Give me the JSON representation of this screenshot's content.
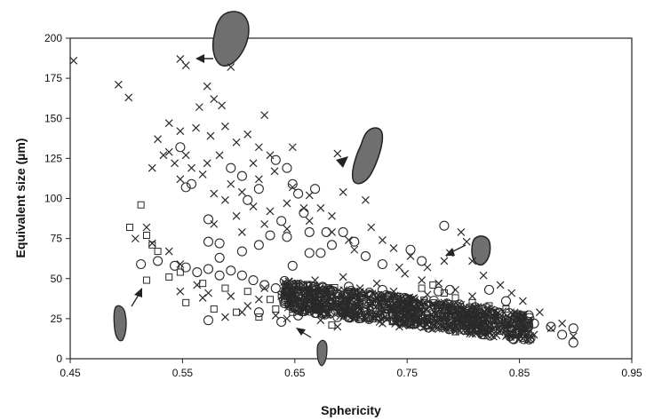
{
  "chart_data": {
    "type": "scatter",
    "xlabel": "Sphericity",
    "ylabel": "Equivalent size (µm)",
    "xlim": [
      0.45,
      0.95
    ],
    "ylim": [
      0,
      200
    ],
    "x_ticks": [
      0.45,
      0.55,
      0.65,
      0.75,
      0.85,
      0.95
    ],
    "x_tick_labels": [
      "0.45",
      "0.55",
      "0.65",
      "0.75",
      "0.85",
      "0.95"
    ],
    "y_ticks": [
      0,
      25,
      50,
      75,
      100,
      125,
      150,
      175,
      200
    ],
    "y_tick_labels": [
      "0",
      "25",
      "50",
      "75",
      "100",
      "125",
      "150",
      "175",
      "200"
    ],
    "grid": false,
    "legend": "none",
    "marker_color": "#2a2a2a",
    "series": [
      {
        "marker": "cross",
        "points": [
          [
            0.453,
            186
          ],
          [
            0.493,
            171
          ],
          [
            0.502,
            163
          ],
          [
            0.548,
            187
          ],
          [
            0.553,
            183
          ],
          [
            0.565,
            157
          ],
          [
            0.572,
            170
          ],
          [
            0.578,
            162
          ],
          [
            0.585,
            158
          ],
          [
            0.593,
            182
          ],
          [
            0.538,
            147
          ],
          [
            0.528,
            137
          ],
          [
            0.548,
            142
          ],
          [
            0.562,
            144
          ],
          [
            0.575,
            139
          ],
          [
            0.588,
            145
          ],
          [
            0.598,
            135
          ],
          [
            0.608,
            140
          ],
          [
            0.618,
            132
          ],
          [
            0.628,
            127
          ],
          [
            0.613,
            122
          ],
          [
            0.583,
            127
          ],
          [
            0.572,
            122
          ],
          [
            0.553,
            127
          ],
          [
            0.543,
            122
          ],
          [
            0.533,
            127
          ],
          [
            0.523,
            119
          ],
          [
            0.548,
            112
          ],
          [
            0.568,
            115
          ],
          [
            0.593,
            109
          ],
          [
            0.603,
            104
          ],
          [
            0.618,
            112
          ],
          [
            0.632,
            117
          ],
          [
            0.648,
            107
          ],
          [
            0.663,
            102
          ],
          [
            0.658,
            94
          ],
          [
            0.643,
            97
          ],
          [
            0.628,
            92
          ],
          [
            0.613,
            95
          ],
          [
            0.598,
            89
          ],
          [
            0.588,
            99
          ],
          [
            0.578,
            103
          ],
          [
            0.578,
            84
          ],
          [
            0.603,
            79
          ],
          [
            0.623,
            84
          ],
          [
            0.643,
            81
          ],
          [
            0.663,
            86
          ],
          [
            0.683,
            79
          ],
          [
            0.698,
            74
          ],
          [
            0.703,
            68
          ],
          [
            0.683,
            89
          ],
          [
            0.673,
            94
          ],
          [
            0.693,
            104
          ],
          [
            0.713,
            99
          ],
          [
            0.688,
            128
          ],
          [
            0.648,
            132
          ],
          [
            0.623,
            152
          ],
          [
            0.538,
            129
          ],
          [
            0.558,
            119
          ],
          [
            0.718,
            82
          ],
          [
            0.728,
            74
          ],
          [
            0.738,
            69
          ],
          [
            0.753,
            64
          ],
          [
            0.743,
            57
          ],
          [
            0.768,
            57
          ],
          [
            0.783,
            61
          ],
          [
            0.808,
            61
          ],
          [
            0.788,
            66
          ],
          [
            0.798,
            79
          ],
          [
            0.803,
            73
          ],
          [
            0.818,
            52
          ],
          [
            0.833,
            46
          ],
          [
            0.843,
            41
          ],
          [
            0.853,
            36
          ],
          [
            0.868,
            29
          ],
          [
            0.878,
            19
          ],
          [
            0.888,
            22
          ],
          [
            0.898,
            14
          ],
          [
            0.858,
            24
          ],
          [
            0.508,
            75
          ],
          [
            0.518,
            82
          ],
          [
            0.523,
            72
          ],
          [
            0.538,
            67
          ],
          [
            0.548,
            59
          ],
          [
            0.563,
            46
          ],
          [
            0.573,
            41
          ],
          [
            0.593,
            39
          ],
          [
            0.608,
            33
          ],
          [
            0.618,
            37
          ],
          [
            0.633,
            27
          ],
          [
            0.643,
            25
          ],
          [
            0.653,
            29
          ],
          [
            0.668,
            36
          ],
          [
            0.683,
            32
          ],
          [
            0.698,
            28
          ],
          [
            0.713,
            25
          ],
          [
            0.728,
            22
          ],
          [
            0.743,
            20
          ],
          [
            0.758,
            23
          ],
          [
            0.773,
            21
          ],
          [
            0.788,
            19
          ],
          [
            0.803,
            17
          ],
          [
            0.818,
            15
          ],
          [
            0.833,
            18
          ],
          [
            0.548,
            42
          ],
          [
            0.568,
            38
          ],
          [
            0.588,
            26
          ],
          [
            0.603,
            29
          ],
          [
            0.623,
            44
          ],
          [
            0.638,
            39
          ],
          [
            0.653,
            45
          ],
          [
            0.668,
            49
          ],
          [
            0.693,
            51
          ],
          [
            0.708,
            44
          ],
          [
            0.723,
            47
          ],
          [
            0.738,
            42
          ],
          [
            0.753,
            37
          ],
          [
            0.768,
            40
          ],
          [
            0.783,
            35
          ],
          [
            0.798,
            31
          ],
          [
            0.813,
            27
          ],
          [
            0.828,
            24
          ],
          [
            0.843,
            21
          ],
          [
            0.703,
            38
          ],
          [
            0.718,
            35
          ],
          [
            0.733,
            33
          ],
          [
            0.748,
            30
          ],
          [
            0.763,
            28
          ],
          [
            0.778,
            26
          ],
          [
            0.793,
            24
          ],
          [
            0.808,
            22
          ],
          [
            0.823,
            20
          ],
          [
            0.838,
            19
          ],
          [
            0.853,
            17
          ],
          [
            0.863,
            15
          ],
          [
            0.688,
            20
          ],
          [
            0.673,
            24
          ],
          [
            0.658,
            31
          ],
          [
            0.663,
            40
          ],
          [
            0.678,
            42
          ],
          [
            0.748,
            53
          ],
          [
            0.763,
            49
          ],
          [
            0.778,
            47
          ],
          [
            0.793,
            43
          ],
          [
            0.808,
            39
          ]
        ]
      },
      {
        "marker": "circle",
        "points": [
          [
            0.548,
            132
          ],
          [
            0.553,
            107
          ],
          [
            0.558,
            109
          ],
          [
            0.573,
            87
          ],
          [
            0.593,
            119
          ],
          [
            0.603,
            114
          ],
          [
            0.608,
            99
          ],
          [
            0.618,
            106
          ],
          [
            0.633,
            124
          ],
          [
            0.643,
            119
          ],
          [
            0.648,
            109
          ],
          [
            0.653,
            103
          ],
          [
            0.668,
            106
          ],
          [
            0.658,
            91
          ],
          [
            0.638,
            86
          ],
          [
            0.628,
            77
          ],
          [
            0.618,
            71
          ],
          [
            0.603,
            67
          ],
          [
            0.583,
            72
          ],
          [
            0.573,
            73
          ],
          [
            0.583,
            63
          ],
          [
            0.643,
            76
          ],
          [
            0.663,
            79
          ],
          [
            0.678,
            79
          ],
          [
            0.693,
            79
          ],
          [
            0.703,
            73
          ],
          [
            0.683,
            71
          ],
          [
            0.663,
            66
          ],
          [
            0.648,
            58
          ],
          [
            0.673,
            66
          ],
          [
            0.713,
            64
          ],
          [
            0.728,
            59
          ],
          [
            0.753,
            68
          ],
          [
            0.763,
            61
          ],
          [
            0.783,
            83
          ],
          [
            0.788,
            43
          ],
          [
            0.778,
            42
          ],
          [
            0.823,
            43
          ],
          [
            0.838,
            36
          ],
          [
            0.848,
            26
          ],
          [
            0.863,
            22
          ],
          [
            0.878,
            20
          ],
          [
            0.888,
            15
          ],
          [
            0.898,
            19
          ],
          [
            0.898,
            10
          ],
          [
            0.513,
            59
          ],
          [
            0.528,
            61
          ],
          [
            0.543,
            58
          ],
          [
            0.553,
            57
          ],
          [
            0.563,
            54
          ],
          [
            0.573,
            56
          ],
          [
            0.583,
            52
          ],
          [
            0.593,
            55
          ],
          [
            0.603,
            52
          ],
          [
            0.613,
            49
          ],
          [
            0.623,
            46
          ],
          [
            0.633,
            44
          ],
          [
            0.643,
            42
          ],
          [
            0.653,
            40
          ],
          [
            0.663,
            38
          ],
          [
            0.673,
            36
          ],
          [
            0.683,
            34
          ],
          [
            0.693,
            33
          ],
          [
            0.703,
            31
          ],
          [
            0.713,
            30
          ],
          [
            0.723,
            29
          ],
          [
            0.733,
            28
          ],
          [
            0.743,
            27
          ],
          [
            0.753,
            26
          ],
          [
            0.763,
            25
          ],
          [
            0.773,
            24
          ],
          [
            0.783,
            23
          ],
          [
            0.793,
            22
          ],
          [
            0.803,
            21
          ],
          [
            0.813,
            20
          ],
          [
            0.823,
            19
          ],
          [
            0.833,
            18
          ],
          [
            0.843,
            17
          ],
          [
            0.573,
            24
          ],
          [
            0.638,
            23
          ],
          [
            0.618,
            29
          ],
          [
            0.653,
            27
          ],
          [
            0.688,
            26
          ],
          [
            0.718,
            39
          ],
          [
            0.738,
            36
          ],
          [
            0.758,
            34
          ],
          [
            0.778,
            31
          ],
          [
            0.798,
            29
          ],
          [
            0.818,
            26
          ],
          [
            0.838,
            24
          ],
          [
            0.698,
            45
          ],
          [
            0.708,
            41
          ],
          [
            0.728,
            43
          ],
          [
            0.748,
            38
          ],
          [
            0.768,
            33
          ],
          [
            0.788,
            30
          ],
          [
            0.808,
            28
          ],
          [
            0.828,
            25
          ],
          [
            0.848,
            22
          ],
          [
            0.858,
            20
          ]
        ]
      },
      {
        "marker": "square",
        "points": [
          [
            0.513,
            96
          ],
          [
            0.503,
            82
          ],
          [
            0.518,
            77
          ],
          [
            0.523,
            71
          ],
          [
            0.528,
            67
          ],
          [
            0.518,
            49
          ],
          [
            0.538,
            51
          ],
          [
            0.548,
            54
          ],
          [
            0.568,
            47
          ],
          [
            0.588,
            44
          ],
          [
            0.608,
            42
          ],
          [
            0.628,
            37
          ],
          [
            0.638,
            40
          ],
          [
            0.653,
            43
          ],
          [
            0.668,
            40
          ],
          [
            0.683,
            36
          ],
          [
            0.693,
            34
          ],
          [
            0.708,
            38
          ],
          [
            0.723,
            35
          ],
          [
            0.738,
            31
          ],
          [
            0.753,
            29
          ],
          [
            0.768,
            27
          ],
          [
            0.783,
            26
          ],
          [
            0.798,
            24
          ],
          [
            0.813,
            22
          ],
          [
            0.828,
            20
          ],
          [
            0.843,
            19
          ],
          [
            0.553,
            35
          ],
          [
            0.578,
            31
          ],
          [
            0.598,
            29
          ],
          [
            0.618,
            26
          ],
          [
            0.633,
            31
          ],
          [
            0.648,
            29
          ],
          [
            0.663,
            33
          ],
          [
            0.678,
            31
          ],
          [
            0.693,
            29
          ],
          [
            0.708,
            27
          ],
          [
            0.723,
            26
          ],
          [
            0.738,
            24
          ],
          [
            0.753,
            23
          ],
          [
            0.768,
            21
          ],
          [
            0.783,
            20
          ],
          [
            0.653,
            36
          ],
          [
            0.683,
            21
          ],
          [
            0.763,
            44
          ],
          [
            0.773,
            46
          ],
          [
            0.783,
            41
          ],
          [
            0.793,
            38
          ],
          [
            0.808,
            35
          ],
          [
            0.823,
            33
          ],
          [
            0.838,
            31
          ],
          [
            0.848,
            28
          ]
        ]
      }
    ]
  }
}
